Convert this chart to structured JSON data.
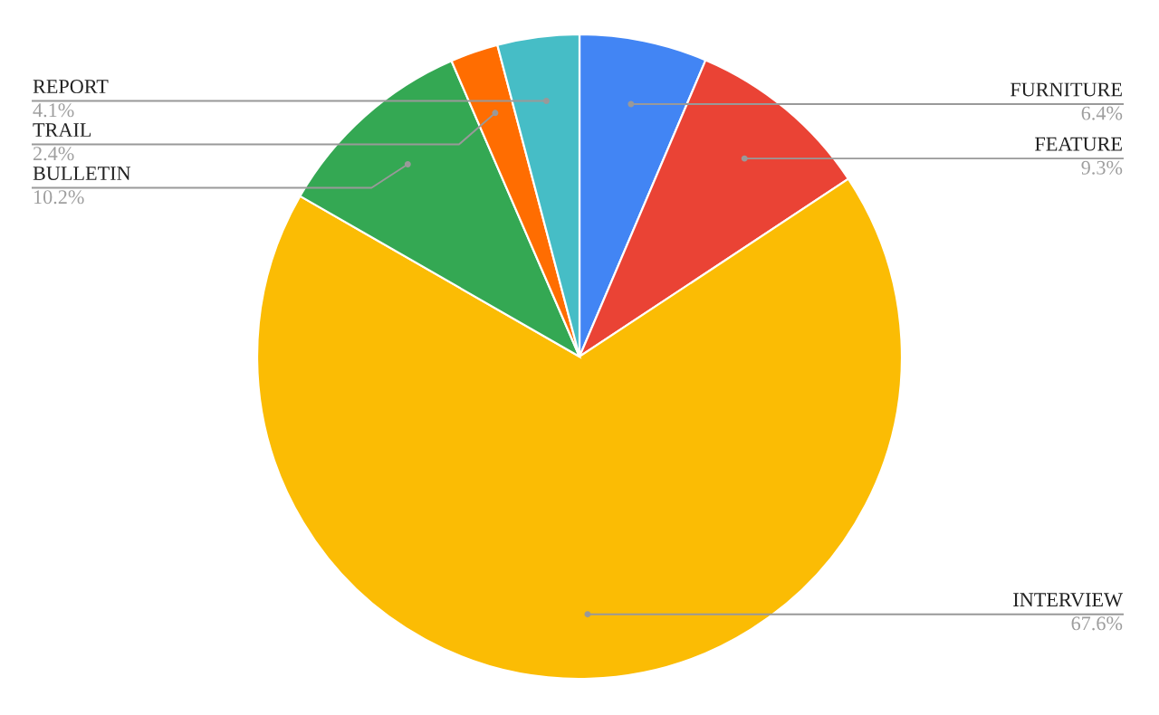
{
  "chart_data": {
    "type": "pie",
    "categories": [
      "FURNITURE",
      "FEATURE",
      "INTERVIEW",
      "BULLETIN",
      "TRAIL",
      "REPORT"
    ],
    "values": [
      6.4,
      9.3,
      67.6,
      10.2,
      2.4,
      4.1
    ],
    "colors": [
      "#4285f4",
      "#ea4335",
      "#fbbc04",
      "#34a853",
      "#ff6d01",
      "#46bdc6"
    ],
    "value_labels": [
      "6.4%",
      "9.3%",
      "67.6%",
      "10.2%",
      "2.4%",
      "4.1%"
    ],
    "legend": false
  }
}
